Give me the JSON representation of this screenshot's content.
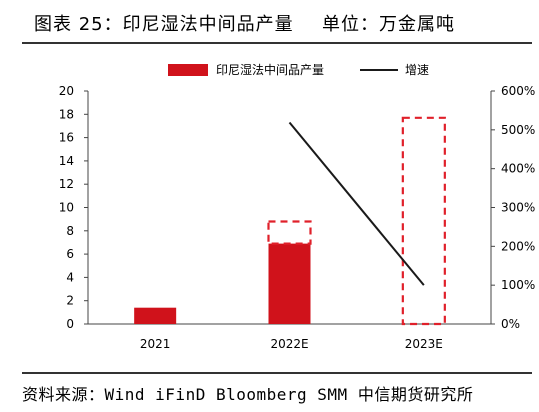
{
  "header": {
    "title": "图表 25：印尼湿法中间品产量",
    "unit": "单位：万金属吨"
  },
  "source": "资料来源：Wind iFinD Bloomberg SMM 中信期货研究所",
  "colors": {
    "bar": "#d0121b",
    "projected_outline": "#e0202a",
    "line": "#1a1a1a",
    "axis": "#444444"
  },
  "chart_data": {
    "type": "bar",
    "categories": [
      "2021",
      "2022E",
      "2023E"
    ],
    "series": [
      {
        "name": "印尼湿法中间品产量",
        "type": "bar",
        "axis": "left",
        "values": [
          1.4,
          6.9,
          null
        ],
        "projected_totals": [
          null,
          8.8,
          17.7
        ]
      },
      {
        "name": "增速",
        "type": "line",
        "axis": "right",
        "values": [
          null,
          5.19,
          1.0
        ]
      }
    ],
    "y_left": {
      "min": 0,
      "max": 20,
      "ticks": [
        0,
        2,
        4,
        6,
        8,
        10,
        12,
        14,
        16,
        18,
        20
      ]
    },
    "y_right": {
      "min": 0,
      "max": 6,
      "ticks": [
        "0%",
        "100%",
        "200%",
        "300%",
        "400%",
        "500%",
        "600%"
      ]
    },
    "legend": {
      "position": "top-center",
      "bar_label": "印尼湿法中间品产量",
      "line_label": "增速"
    },
    "grid": false
  }
}
